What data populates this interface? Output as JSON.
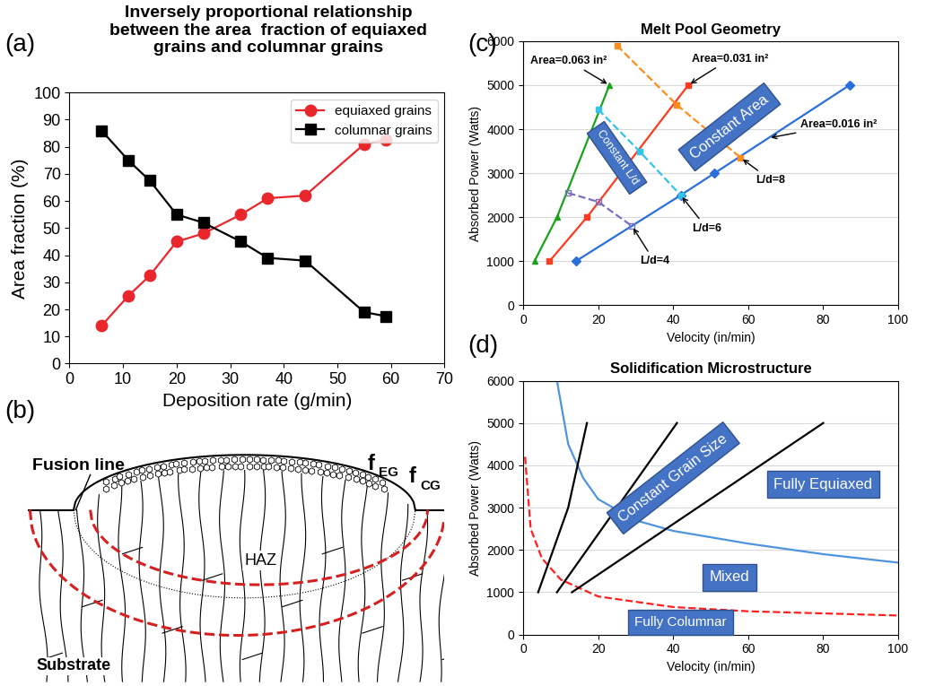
{
  "chart_data": [
    {
      "panel": "(a)",
      "type": "line",
      "title": "Inversely proportional relationship\nbetween the area  fraction of equiaxed\ngrains and columnar grains",
      "x_label": "Deposition rate (g/min)",
      "y_label": "Area fraction (%)",
      "x": [
        6,
        11,
        15,
        20,
        25,
        32,
        37,
        44,
        55,
        59
      ],
      "series": [
        {
          "name": "equiaxed grains",
          "color": "#e8262b",
          "marker": "circle",
          "line_style": "solid",
          "values": [
            14,
            25,
            32.5,
            45,
            48,
            55,
            61,
            62,
            81,
            82.5
          ]
        },
        {
          "name": "columnar grains",
          "color": "#000000",
          "marker": "square",
          "line_style": "solid",
          "values": [
            86,
            75,
            67.5,
            55,
            52,
            45,
            39,
            38,
            19,
            17.5
          ]
        }
      ],
      "xlim": [
        0,
        70
      ],
      "xticks": [
        0,
        10,
        20,
        30,
        40,
        50,
        60,
        70
      ],
      "ylim": [
        0,
        100
      ],
      "yticks": [
        0,
        10,
        20,
        30,
        40,
        50,
        60,
        70,
        80,
        90,
        100
      ],
      "legend": "upper right",
      "grid": false
    },
    {
      "panel": "(c)",
      "type": "line",
      "title": "Melt Pool Geometry",
      "x_label": "Velocity (in/min)",
      "y_label": "Absorbed Power (Watts)",
      "series": [
        {
          "name": "Area=0.063 in²",
          "color": "#1aa31a",
          "marker": "triangle",
          "line_style": "solid",
          "x": [
            3,
            9,
            23
          ],
          "values": [
            1000,
            2000,
            5000
          ]
        },
        {
          "name": "Area=0.031 in²",
          "color": "#ff3b1f",
          "marker": "square",
          "line_style": "solid",
          "x": [
            7,
            17,
            44
          ],
          "values": [
            1000,
            2000,
            5000
          ]
        },
        {
          "name": "Area=0.016 in²",
          "color": "#2a6fdb",
          "marker": "diamond",
          "line_style": "solid",
          "x": [
            14,
            42,
            51,
            87
          ],
          "values": [
            1000,
            2500,
            3000,
            5000
          ]
        },
        {
          "name": "L/d=8",
          "color": "#ff8c1a",
          "marker": "square",
          "line_style": "dashed",
          "x": [
            25,
            41,
            58
          ],
          "values": [
            5900,
            4550,
            3350
          ]
        },
        {
          "name": "L/d=6",
          "color": "#33c3e8",
          "marker": "square",
          "line_style": "dashed",
          "x": [
            20,
            31,
            42
          ],
          "values": [
            4450,
            3500,
            2500
          ]
        },
        {
          "name": "L/d=4",
          "color": "#7a6fbf",
          "marker": "open_square",
          "line_style": "dashed",
          "x": [
            12,
            20,
            29
          ],
          "values": [
            2550,
            2350,
            1800
          ]
        }
      ],
      "annotations": [
        "Constant Area",
        "Constant L/d"
      ],
      "xlim": [
        0,
        100
      ],
      "xticks": [
        0,
        20,
        40,
        60,
        80,
        100
      ],
      "ylim": [
        0,
        6000
      ],
      "yticks": [
        0,
        1000,
        2000,
        3000,
        4000,
        5000,
        6000
      ],
      "grid": "y"
    },
    {
      "panel": "(d)",
      "type": "line",
      "title": "Solidification Microstructure",
      "x_label": "Velocity (in/min)",
      "y_label": "Absorbed Power (Watts)",
      "series": [
        {
          "color": "#4f94e0",
          "line_style": "solid",
          "x": [
            9,
            12,
            16,
            20,
            30,
            40,
            60,
            80,
            100
          ],
          "values": [
            6000,
            4500,
            3700,
            3200,
            2700,
            2450,
            2150,
            1900,
            1700
          ]
        },
        {
          "color": "#ff2020",
          "line_style": "dashed",
          "x": [
            0.5,
            2,
            5,
            10,
            20,
            40,
            60,
            80,
            100
          ],
          "values": [
            4200,
            2500,
            1800,
            1300,
            900,
            650,
            550,
            500,
            450
          ]
        },
        {
          "color": "#000000",
          "line_style": "solid",
          "x": [
            4,
            12,
            17
          ],
          "values": [
            1000,
            3000,
            5000
          ]
        },
        {
          "color": "#000000",
          "line_style": "solid",
          "x": [
            9,
            25,
            41
          ],
          "values": [
            1000,
            3000,
            5000
          ]
        },
        {
          "color": "#000000",
          "line_style": "solid",
          "x": [
            13,
            80
          ],
          "values": [
            1000,
            5000
          ]
        }
      ],
      "annotations": [
        "Constant Grain Size",
        "Fully Equiaxed",
        "Mixed",
        "Fully Columnar"
      ],
      "xlim": [
        0,
        100
      ],
      "xticks": [
        0,
        20,
        40,
        60,
        80,
        100
      ],
      "ylim": [
        0,
        6000
      ],
      "yticks": [
        0,
        1000,
        2000,
        3000,
        4000,
        5000,
        6000
      ],
      "grid": "y"
    }
  ],
  "diagram": {
    "panel": "(b)",
    "labels": {
      "fusion_line": "Fusion line",
      "haz": "HAZ",
      "substrate": "Substrate"
    },
    "fractions": [
      {
        "symbol": "f",
        "subscript": "EG"
      },
      {
        "symbol": "f",
        "subscript": "CG"
      }
    ]
  }
}
